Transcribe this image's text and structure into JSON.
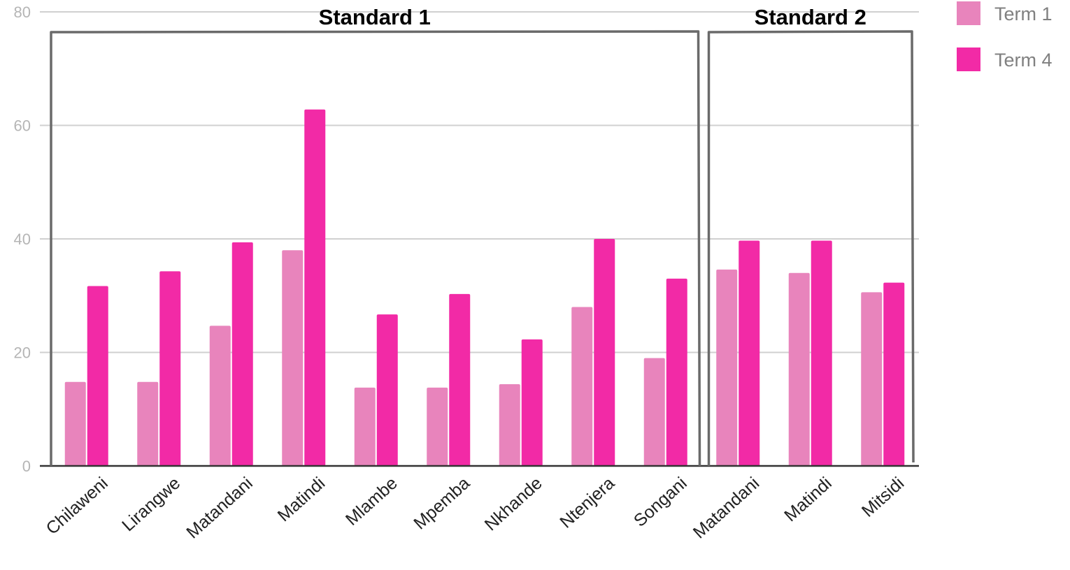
{
  "chart_data": {
    "type": "bar",
    "title": "",
    "xlabel": "",
    "ylabel": "",
    "ylim": [
      0,
      80
    ],
    "yticks": [
      0,
      20,
      40,
      60,
      80
    ],
    "grid": true,
    "legend_position": "top-right",
    "categories": [
      "Chilaweni",
      "Lirangwe",
      "Matandani",
      "Matindi",
      "Mlambe",
      "Mpemba",
      "Nkhande",
      "Ntenjera",
      "Songani",
      "Matandani",
      "Matindi",
      "Mitsidi"
    ],
    "series": [
      {
        "name": "Term 1",
        "color": "#e884bc",
        "values": [
          14.8,
          14.8,
          24.7,
          38.0,
          13.8,
          13.8,
          14.4,
          28.0,
          19.0,
          34.6,
          34.0,
          30.6
        ]
      },
      {
        "name": "Term 4",
        "color": "#f22aa6",
        "values": [
          31.7,
          34.3,
          39.4,
          62.8,
          26.7,
          30.3,
          22.3,
          40.0,
          33.0,
          39.7,
          39.7,
          32.3
        ]
      }
    ],
    "groups": [
      {
        "label": "Standard 1",
        "first_category": 0,
        "last_category": 8
      },
      {
        "label": "Standard 2",
        "first_category": 9,
        "last_category": 11
      }
    ]
  }
}
